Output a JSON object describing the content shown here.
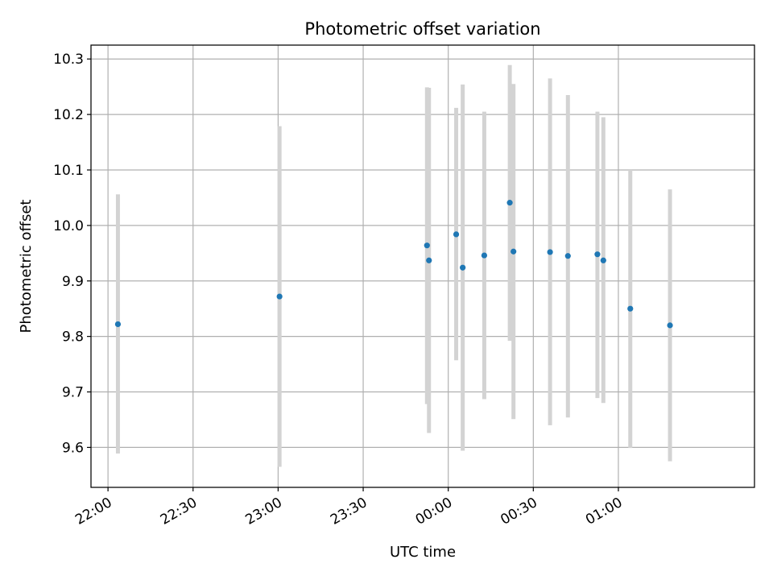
{
  "chart_data": {
    "type": "scatter",
    "title": "Photometric offset variation",
    "xlabel": "UTC time",
    "ylabel": "Photometric offset",
    "x_unit": "UTC",
    "xlim": [
      "21:54",
      "01:48"
    ],
    "ylim": [
      9.528,
      10.325
    ],
    "grid": true,
    "x_ticks": [
      {
        "time": "22:00",
        "label": "22:00"
      },
      {
        "time": "22:30",
        "label": "22:30"
      },
      {
        "time": "23:00",
        "label": "23:00"
      },
      {
        "time": "23:30",
        "label": "23:30"
      },
      {
        "time": "00:00",
        "label": "00:00"
      },
      {
        "time": "00:30",
        "label": "00:30"
      },
      {
        "time": "01:00",
        "label": "01:00"
      }
    ],
    "y_ticks": [
      9.6,
      9.7,
      9.8,
      9.9,
      10.0,
      10.1,
      10.2,
      10.3
    ],
    "colors": {
      "point": "#1f77b4",
      "errorbar": "#d3d3d3",
      "grid": "#b0b0b0"
    },
    "points": [
      {
        "time": "22:03.5",
        "y": 9.822,
        "ylow": 9.589,
        "yhigh": 10.056
      },
      {
        "time": "23:00.5",
        "y": 9.872,
        "ylow": 9.565,
        "yhigh": 10.179
      },
      {
        "time": "23:52.5",
        "y": 9.964,
        "ylow": 9.678,
        "yhigh": 10.249
      },
      {
        "time": "23:53.2",
        "y": 9.937,
        "ylow": 9.626,
        "yhigh": 10.248
      },
      {
        "time": "00:02.8",
        "y": 9.984,
        "ylow": 9.757,
        "yhigh": 10.212
      },
      {
        "time": "00:05.1",
        "y": 9.924,
        "ylow": 9.594,
        "yhigh": 10.254
      },
      {
        "time": "00:12.7",
        "y": 9.946,
        "ylow": 9.687,
        "yhigh": 10.205
      },
      {
        "time": "00:21.7",
        "y": 10.041,
        "ylow": 9.792,
        "yhigh": 10.289
      },
      {
        "time": "00:23.0",
        "y": 9.953,
        "ylow": 9.651,
        "yhigh": 10.255
      },
      {
        "time": "00:35.9",
        "y": 9.952,
        "ylow": 9.64,
        "yhigh": 10.265
      },
      {
        "time": "00:42.2",
        "y": 9.945,
        "ylow": 9.654,
        "yhigh": 10.235
      },
      {
        "time": "00:52.6",
        "y": 9.948,
        "ylow": 9.689,
        "yhigh": 10.205
      },
      {
        "time": "00:54.7",
        "y": 9.937,
        "ylow": 9.68,
        "yhigh": 10.195
      },
      {
        "time": "01:04.2",
        "y": 9.85,
        "ylow": 9.599,
        "yhigh": 10.1
      },
      {
        "time": "01:18.2",
        "y": 9.82,
        "ylow": 9.575,
        "yhigh": 10.065
      }
    ]
  }
}
